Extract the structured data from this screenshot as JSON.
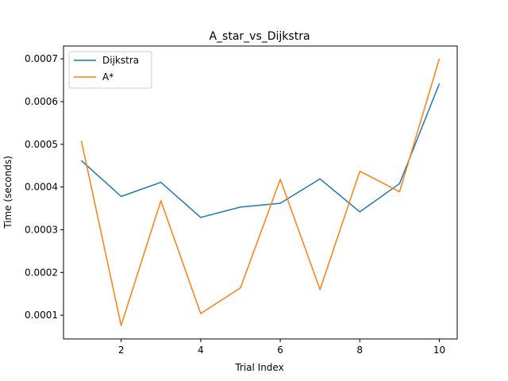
{
  "chart_data": {
    "type": "line",
    "title": "A_star_vs_Dijkstra",
    "xlabel": "Trial Index",
    "ylabel": "Time (seconds)",
    "x": [
      1,
      2,
      3,
      4,
      5,
      6,
      7,
      8,
      9,
      10
    ],
    "xlim": [
      0.55,
      10.45
    ],
    "ylim": [
      4.45e-05,
      0.00073
    ],
    "xticks": [
      2,
      4,
      6,
      8,
      10
    ],
    "yticks": [
      0.0001,
      0.0002,
      0.0003,
      0.0004,
      0.0005,
      0.0006,
      0.0007
    ],
    "ytick_labels": [
      "0.0001",
      "0.0002",
      "0.0003",
      "0.0004",
      "0.0005",
      "0.0006",
      "0.0007"
    ],
    "grid": false,
    "legend_position": "top-left",
    "series": [
      {
        "name": "Dijkstra",
        "color": "#1f77b4",
        "values": [
          0.000462,
          0.000378,
          0.000411,
          0.000329,
          0.000353,
          0.000362,
          0.000419,
          0.000342,
          0.000408,
          0.000642
        ]
      },
      {
        "name": "A*",
        "color": "#ff7f0e",
        "values": [
          0.000508,
          7.6e-05,
          0.000368,
          0.000104,
          0.000164,
          0.000418,
          0.00016,
          0.000437,
          0.000389,
          0.0007
        ]
      }
    ]
  }
}
